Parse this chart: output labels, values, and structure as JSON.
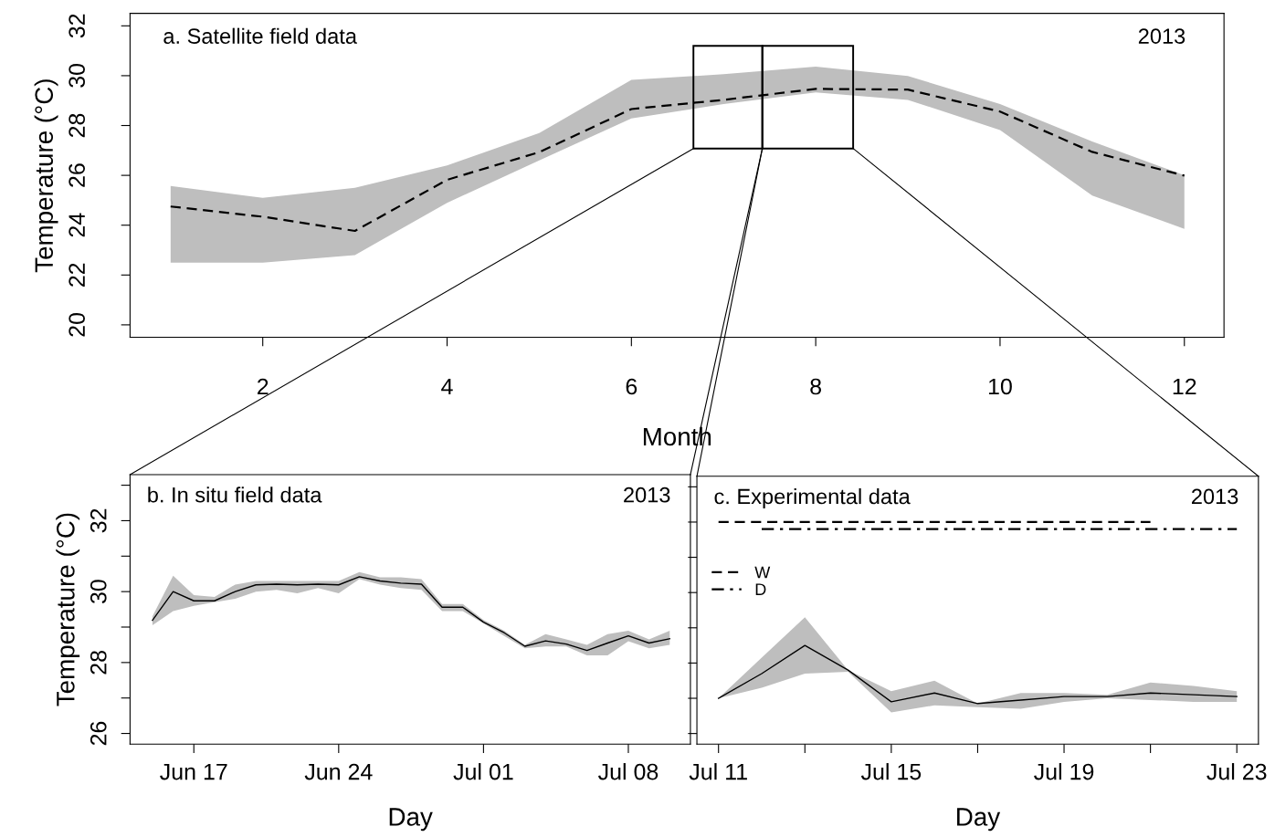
{
  "chart_data": [
    {
      "type": "line",
      "title": "a. Satellite field data",
      "xlabel": "Month",
      "ylabel": "Temperature (°C)",
      "annotations": [
        "2013"
      ],
      "x": [
        1,
        2,
        3,
        4,
        5,
        6,
        7,
        8,
        9,
        10,
        11,
        12
      ],
      "series": [
        {
          "color": "#000000",
          "line_style": "dashed",
          "values": [
            24.75,
            24.34,
            23.77,
            25.82,
            26.93,
            28.66,
            29.03,
            29.47,
            29.44,
            28.56,
            26.94,
            25.99
          ],
          "lower": [
            22.5,
            22.5,
            22.8,
            24.9,
            26.6,
            28.28,
            28.86,
            29.33,
            29.03,
            27.82,
            25.19,
            23.85
          ],
          "upper": [
            25.57,
            25.1,
            25.5,
            26.4,
            27.7,
            29.83,
            30.06,
            30.36,
            29.99,
            28.86,
            27.36,
            26.0
          ]
        }
      ],
      "xlim": [
        0.56,
        12.43
      ],
      "ylim": [
        19.5,
        32.5
      ],
      "xticks": [
        2,
        4,
        6,
        8,
        10,
        12
      ],
      "yticks": [
        20,
        22,
        24,
        26,
        28,
        30,
        32
      ]
    },
    {
      "type": "line",
      "title": "b. In situ field data",
      "xlabel": "Day",
      "ylabel": "Temperature (°C)",
      "annotations": [
        "2013"
      ],
      "x": [
        "2013-06-15",
        "2013-06-16",
        "2013-06-17",
        "2013-06-18",
        "2013-06-19",
        "2013-06-20",
        "2013-06-21",
        "2013-06-22",
        "2013-06-23",
        "2013-06-24",
        "2013-06-25",
        "2013-06-26",
        "2013-06-27",
        "2013-06-28",
        "2013-06-29",
        "2013-06-30",
        "2013-07-01",
        "2013-07-02",
        "2013-07-03",
        "2013-07-04",
        "2013-07-05",
        "2013-07-06",
        "2013-07-07",
        "2013-07-08",
        "2013-07-09",
        "2013-07-10"
      ],
      "series": [
        {
          "color": "#000000",
          "line_style": "solid",
          "values": [
            29.19,
            30.0,
            29.74,
            29.74,
            30.0,
            30.19,
            30.21,
            30.19,
            30.21,
            30.19,
            30.42,
            30.3,
            30.24,
            30.21,
            29.56,
            29.56,
            29.14,
            28.84,
            28.46,
            28.61,
            28.52,
            28.34,
            28.55,
            28.75,
            28.55,
            28.67
          ],
          "lower": [
            29.05,
            29.45,
            29.6,
            29.7,
            29.8,
            30.0,
            30.05,
            29.95,
            30.1,
            29.95,
            30.35,
            30.2,
            30.1,
            30.05,
            29.45,
            29.45,
            29.1,
            28.75,
            28.4,
            28.45,
            28.45,
            28.2,
            28.2,
            28.6,
            28.4,
            28.5
          ],
          "upper": [
            29.3,
            30.45,
            29.9,
            29.85,
            30.2,
            30.3,
            30.3,
            30.3,
            30.3,
            30.3,
            30.55,
            30.4,
            30.4,
            30.35,
            29.65,
            29.65,
            29.2,
            28.9,
            28.5,
            28.8,
            28.65,
            28.5,
            28.8,
            28.9,
            28.65,
            28.9
          ]
        }
      ],
      "xlim": [
        "2013-06-13T22:00",
        "2013-07-11"
      ],
      "ylim": [
        25.7,
        33.3
      ],
      "xticks": [
        {
          "value": "2013-06-17",
          "label": "Jun 17"
        },
        {
          "value": "2013-06-24",
          "label": "Jun 24"
        },
        {
          "value": "2013-07-01",
          "label": "Jul 01"
        },
        {
          "value": "2013-07-08",
          "label": "Jul 08"
        }
      ],
      "yticks": [
        26,
        {
          "value": 27,
          "label": null
        },
        28,
        {
          "value": 29,
          "label": null
        },
        30,
        {
          "value": 31,
          "label": null
        },
        32,
        {
          "value": 33,
          "label": null
        }
      ]
    },
    {
      "type": "line",
      "title": "c. Experimental data",
      "xlabel": "Day",
      "annotations": [
        "2013"
      ],
      "legend": "top left",
      "tick_labels": "x",
      "x": [
        "2013-07-11",
        "2013-07-12",
        "2013-07-13",
        "2013-07-14",
        "2013-07-15",
        "2013-07-16",
        "2013-07-17",
        "2013-07-18",
        "2013-07-19",
        "2013-07-20",
        "2013-07-21",
        "2013-07-22",
        "2013-07-23"
      ],
      "series": [
        {
          "color": "#000000",
          "line_style": "solid",
          "values": [
            27.0,
            27.7,
            28.5,
            27.8,
            26.9,
            27.15,
            26.85,
            26.95,
            27.05,
            27.05,
            27.15,
            27.1,
            27.05
          ],
          "lower": [
            27.0,
            27.3,
            27.7,
            27.75,
            26.6,
            26.8,
            26.75,
            26.7,
            26.9,
            27.0,
            26.95,
            26.9,
            26.9
          ],
          "upper": [
            27.0,
            28.15,
            29.3,
            27.8,
            27.2,
            27.5,
            26.85,
            27.15,
            27.15,
            27.1,
            27.45,
            27.35,
            27.2
          ]
        },
        {
          "name": "W",
          "color": "#000000",
          "line_style": "dashed",
          "x": [
            "2013-07-11",
            "2013-07-21"
          ],
          "values": [
            32.0,
            32.0
          ]
        },
        {
          "name": "D",
          "color": "#000000",
          "line_style": "dashdot",
          "x": [
            "2013-07-12",
            "2013-07-23"
          ],
          "values": [
            31.8,
            31.8
          ]
        }
      ],
      "xlim": [
        "2013-07-10T12:00",
        "2013-07-23T12:00"
      ],
      "ylim": [
        25.7,
        33.3
      ],
      "xticks": [
        {
          "value": "2013-07-11",
          "label": "Jul 11"
        },
        {
          "value": "2013-07-13",
          "label": null
        },
        {
          "value": "2013-07-15",
          "label": "Jul 15"
        },
        {
          "value": "2013-07-17",
          "label": null
        },
        {
          "value": "2013-07-19",
          "label": "Jul 19"
        },
        {
          "value": "2013-07-21",
          "label": null
        },
        {
          "value": "2013-07-23",
          "label": "Jul 23"
        }
      ],
      "yticks": [
        26,
        27,
        28,
        29,
        30,
        31,
        32,
        33
      ]
    }
  ]
}
